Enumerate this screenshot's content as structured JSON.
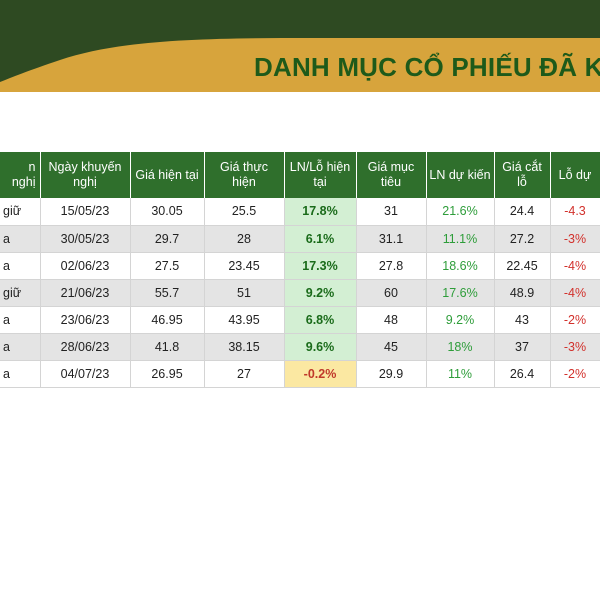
{
  "title": "DANH MỤC CỔ PHIẾU ĐÃ K",
  "colors": {
    "header_dark_green": "#2e4a22",
    "header_gold": "#d7a43c",
    "table_header_green": "#2f6f2c",
    "positive_green": "#2e9d3a",
    "negative_red": "#d2312c"
  },
  "table": {
    "headers": [
      "n nghị",
      "Ngày khuyến nghị",
      "Giá hiện tại",
      "Giá thực hiện",
      "LN/Lỗ hiện tại",
      "Giá mục tiêu",
      "LN dự kiến",
      "Giá cắt lỗ",
      "Lỗ dự"
    ],
    "rows": [
      [
        "giữ",
        "15/05/23",
        "30.05",
        "25.5",
        "17.8%",
        "31",
        "21.6%",
        "24.4",
        "-4.3"
      ],
      [
        "a",
        "30/05/23",
        "29.7",
        "28",
        "6.1%",
        "31.1",
        "11.1%",
        "27.2",
        "-3%"
      ],
      [
        "a",
        "02/06/23",
        "27.5",
        "23.45",
        "17.3%",
        "27.8",
        "18.6%",
        "22.45",
        "-4%"
      ],
      [
        "giữ",
        "21/06/23",
        "55.7",
        "51",
        "9.2%",
        "60",
        "17.6%",
        "48.9",
        "-4%"
      ],
      [
        "a",
        "23/06/23",
        "46.95",
        "43.95",
        "6.8%",
        "48",
        "9.2%",
        "43",
        "-2%"
      ],
      [
        "a",
        "28/06/23",
        "41.8",
        "38.15",
        "9.6%",
        "45",
        "18%",
        "37",
        "-3%"
      ],
      [
        "a",
        "04/07/23",
        "26.95",
        "27",
        "-0.2%",
        "29.9",
        "11%",
        "26.4",
        "-2%"
      ]
    ]
  }
}
